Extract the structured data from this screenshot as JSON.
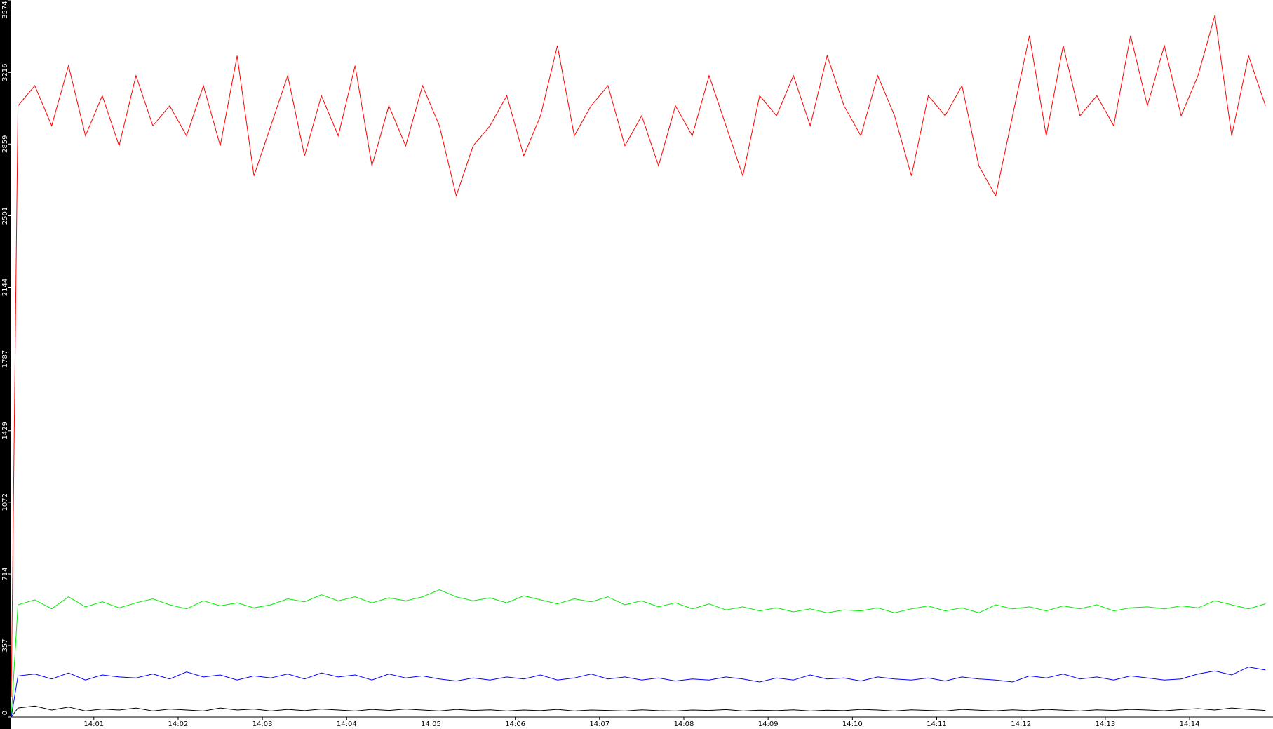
{
  "chart_data": {
    "type": "line",
    "x": [
      0.02,
      0.1,
      0.3,
      0.5,
      0.7,
      0.9,
      1.1,
      1.3,
      1.5,
      1.7,
      1.9,
      2.1,
      2.3,
      2.5,
      2.7,
      2.9,
      3.1,
      3.3,
      3.5,
      3.7,
      3.9,
      4.1,
      4.3,
      4.5,
      4.7,
      4.9,
      5.1,
      5.3,
      5.5,
      5.7,
      5.9,
      6.1,
      6.3,
      6.5,
      6.7,
      6.9,
      7.1,
      7.3,
      7.5,
      7.7,
      7.9,
      8.1,
      8.3,
      8.5,
      8.7,
      8.9,
      9.1,
      9.3,
      9.5,
      9.7,
      9.9,
      10.1,
      10.3,
      10.5,
      10.7,
      10.9,
      11.1,
      11.3,
      11.5,
      11.7,
      11.9,
      12.1,
      12.3,
      12.5,
      12.7,
      12.9,
      13.1,
      13.3,
      13.5,
      13.7,
      13.9,
      14.1,
      14.3,
      14.5,
      14.7,
      14.9
    ],
    "series": [
      {
        "color": "#ff0000",
        "values": [
          100,
          3050,
          3150,
          2950,
          3250,
          2900,
          3100,
          2850,
          3200,
          2950,
          3050,
          2900,
          3150,
          2850,
          3300,
          2700,
          2950,
          3200,
          2800,
          3100,
          2900,
          3250,
          2750,
          3050,
          2850,
          3150,
          2950,
          2600,
          2850,
          2950,
          3100,
          2800,
          3000,
          3350,
          2900,
          3050,
          3150,
          2850,
          3000,
          2750,
          3050,
          2900,
          3200,
          2950,
          2700,
          3100,
          3000,
          3200,
          2950,
          3300,
          3050,
          2900,
          3200,
          3000,
          2700,
          3100,
          3000,
          3150,
          2750,
          2600,
          3000,
          3400,
          2900,
          3350,
          3000,
          3100,
          2950,
          3400,
          3050,
          3350,
          3000,
          3200,
          3500,
          2900,
          3300,
          3050
        ]
      },
      {
        "color": "#00ee00",
        "values": [
          0,
          560,
          585,
          540,
          600,
          550,
          575,
          545,
          570,
          590,
          560,
          540,
          580,
          555,
          570,
          545,
          560,
          590,
          575,
          610,
          580,
          600,
          570,
          595,
          580,
          600,
          635,
          600,
          580,
          595,
          570,
          605,
          585,
          565,
          590,
          575,
          600,
          560,
          580,
          550,
          570,
          540,
          565,
          535,
          550,
          530,
          545,
          525,
          540,
          520,
          535,
          530,
          545,
          520,
          540,
          555,
          530,
          545,
          520,
          560,
          540,
          550,
          530,
          555,
          540,
          560,
          530,
          545,
          550,
          540,
          555,
          545,
          580,
          560,
          540,
          565
        ]
      },
      {
        "color": "#0000ff",
        "values": [
          0,
          205,
          215,
          190,
          220,
          185,
          210,
          200,
          195,
          215,
          190,
          225,
          200,
          210,
          185,
          205,
          195,
          215,
          190,
          220,
          200,
          210,
          185,
          215,
          195,
          205,
          190,
          180,
          195,
          185,
          200,
          190,
          210,
          185,
          195,
          215,
          190,
          200,
          185,
          195,
          180,
          190,
          185,
          200,
          190,
          175,
          195,
          185,
          210,
          190,
          195,
          180,
          200,
          190,
          185,
          195,
          180,
          200,
          190,
          185,
          175,
          205,
          195,
          215,
          190,
          200,
          185,
          205,
          195,
          185,
          190,
          215,
          230,
          210,
          250,
          235
        ]
      },
      {
        "color": "#000000",
        "values": [
          0,
          45,
          55,
          35,
          50,
          30,
          40,
          35,
          45,
          30,
          40,
          35,
          30,
          45,
          35,
          40,
          30,
          38,
          32,
          40,
          35,
          30,
          38,
          33,
          40,
          35,
          30,
          38,
          33,
          36,
          30,
          35,
          32,
          38,
          30,
          35,
          33,
          30,
          36,
          32,
          30,
          35,
          33,
          37,
          30,
          34,
          32,
          36,
          30,
          34,
          32,
          38,
          35,
          30,
          36,
          33,
          30,
          38,
          34,
          31,
          36,
          32,
          38,
          34,
          30,
          36,
          33,
          38,
          35,
          31,
          37,
          42,
          35,
          45,
          38,
          33
        ]
      }
    ],
    "xlim": [
      0.02,
      14.99
    ],
    "xticks": [
      {
        "value": 1,
        "label": "14:01"
      },
      {
        "value": 2,
        "label": "14:02"
      },
      {
        "value": 3,
        "label": "14:03"
      },
      {
        "value": 4,
        "label": "14:04"
      },
      {
        "value": 5,
        "label": "14:05"
      },
      {
        "value": 6,
        "label": "14:06"
      },
      {
        "value": 7,
        "label": "14:07"
      },
      {
        "value": 8,
        "label": "14:08"
      },
      {
        "value": 9,
        "label": "14:09"
      },
      {
        "value": 10,
        "label": "14:10"
      },
      {
        "value": 11,
        "label": "14:11"
      },
      {
        "value": 12,
        "label": "14:12"
      },
      {
        "value": 13,
        "label": "14:13"
      },
      {
        "value": 14,
        "label": "14:14"
      }
    ],
    "ylim": [
      0,
      3574
    ],
    "yticks": [
      0,
      357,
      714,
      1072,
      1429,
      1787,
      2144,
      2501,
      2859,
      3216,
      3574
    ]
  }
}
